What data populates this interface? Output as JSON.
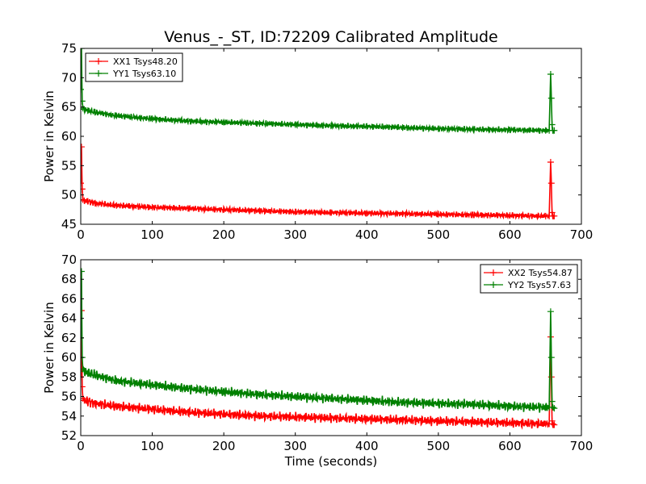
{
  "figure": {
    "title": "Venus_-_ST, ID:72209 Calibrated Amplitude",
    "xlabel": "Time (seconds)"
  },
  "chart_data": [
    {
      "type": "line",
      "ylabel": "Power in Kelvin",
      "xlim": [
        0,
        700
      ],
      "ylim": [
        45,
        75
      ],
      "xticks": [
        0,
        100,
        200,
        300,
        400,
        500,
        600,
        700
      ],
      "yticks": [
        45,
        50,
        55,
        60,
        65,
        70,
        75
      ],
      "legend": "top-left",
      "grid": false,
      "series": [
        {
          "name": "XX1 Tsys48.20",
          "color": "#ff0000",
          "x": [
            0,
            1,
            2,
            3,
            5,
            10,
            20,
            50,
            100,
            150,
            200,
            250,
            300,
            350,
            400,
            450,
            500,
            550,
            600,
            650,
            655,
            657,
            658,
            659,
            660,
            662
          ],
          "y": [
            52,
            58.2,
            51,
            49.2,
            49,
            48.9,
            48.6,
            48.2,
            47.9,
            47.7,
            47.5,
            47.3,
            47.1,
            47.0,
            46.9,
            46.8,
            46.7,
            46.6,
            46.5,
            46.4,
            46.4,
            55.6,
            52,
            47,
            46.4,
            46.4
          ]
        },
        {
          "name": "YY1 Tsys63.10",
          "color": "#008000",
          "x": [
            0,
            1,
            2,
            3,
            5,
            10,
            20,
            50,
            100,
            150,
            200,
            250,
            300,
            350,
            400,
            450,
            500,
            550,
            600,
            650,
            655,
            657,
            658,
            659,
            660,
            662
          ],
          "y": [
            68,
            75,
            66,
            64.8,
            64.6,
            64.4,
            64.1,
            63.5,
            63.0,
            62.6,
            62.4,
            62.2,
            62.0,
            61.8,
            61.7,
            61.5,
            61.3,
            61.2,
            61.1,
            61.0,
            61.0,
            70.6,
            66.5,
            62,
            61.0,
            61.0
          ]
        }
      ]
    },
    {
      "type": "line",
      "ylabel": "Power in Kelvin",
      "xlim": [
        0,
        700
      ],
      "ylim": [
        52,
        70
      ],
      "xticks": [
        0,
        100,
        200,
        300,
        400,
        500,
        600,
        700
      ],
      "yticks": [
        52,
        54,
        56,
        58,
        60,
        62,
        64,
        66,
        68,
        70
      ],
      "legend": "top-right",
      "grid": false,
      "series": [
        {
          "name": "XX2 Tsys54.87",
          "color": "#ff0000",
          "x": [
            0,
            1,
            2,
            3,
            5,
            10,
            20,
            50,
            100,
            150,
            200,
            250,
            300,
            350,
            400,
            450,
            500,
            550,
            600,
            650,
            655,
            657,
            658,
            659,
            660,
            662
          ],
          "y": [
            58,
            64.8,
            57,
            55.8,
            55.6,
            55.5,
            55.3,
            55.0,
            54.7,
            54.4,
            54.2,
            54.0,
            53.9,
            53.8,
            53.7,
            53.6,
            53.5,
            53.4,
            53.3,
            53.2,
            53.2,
            62.1,
            58,
            53.5,
            53.2,
            53.1
          ]
        },
        {
          "name": "YY2 Tsys57.63",
          "color": "#008000",
          "x": [
            0,
            1,
            2,
            3,
            5,
            10,
            20,
            50,
            100,
            150,
            200,
            250,
            300,
            350,
            400,
            450,
            500,
            550,
            600,
            650,
            655,
            657,
            658,
            659,
            660,
            662
          ],
          "y": [
            62,
            68.8,
            60,
            58.8,
            58.6,
            58.4,
            58.2,
            57.6,
            57.2,
            56.8,
            56.5,
            56.2,
            56.0,
            55.8,
            55.6,
            55.4,
            55.3,
            55.2,
            55.0,
            54.9,
            54.9,
            64.7,
            60,
            55.5,
            54.9,
            54.8
          ]
        }
      ]
    }
  ]
}
